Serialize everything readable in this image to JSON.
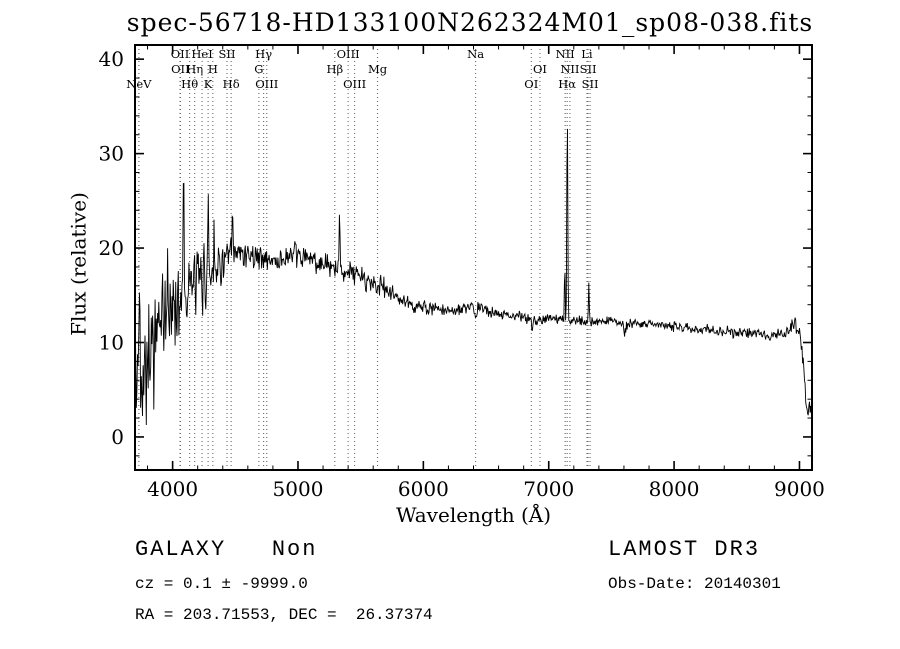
{
  "title": "spec-56718-HD133100N262324M01_sp08-038.fits",
  "chart_data": {
    "type": "line",
    "title": "spec-56718-HD133100N262324M01_sp08-038.fits",
    "xlabel": "Wavelength (Å)",
    "ylabel": "Flux (relative)",
    "xlim": [
      3700,
      9100
    ],
    "ylim": [
      -3.5,
      41.5
    ],
    "x_ticks": [
      4000,
      5000,
      6000,
      7000,
      8000,
      9000
    ],
    "y_ticks": [
      0,
      10,
      20,
      30,
      40
    ],
    "x_minor_step": 200,
    "y_minor_step": 2,
    "grid": false,
    "line_color": "#000000",
    "spectral_line_color": "#aa3939",
    "continuum": [
      [
        3700,
        5
      ],
      [
        3740,
        7
      ],
      [
        3800,
        9
      ],
      [
        3850,
        10
      ],
      [
        3900,
        12
      ],
      [
        3960,
        13
      ],
      [
        4020,
        14
      ],
      [
        4080,
        15
      ],
      [
        4150,
        16
      ],
      [
        4220,
        16.5
      ],
      [
        4300,
        17.5
      ],
      [
        4380,
        18.2
      ],
      [
        4460,
        19
      ],
      [
        4550,
        19.5
      ],
      [
        4650,
        19.2
      ],
      [
        4750,
        18.8
      ],
      [
        4850,
        18.6
      ],
      [
        4950,
        19.2
      ],
      [
        5050,
        19
      ],
      [
        5150,
        18.6
      ],
      [
        5250,
        17.8
      ],
      [
        5350,
        17.8
      ],
      [
        5450,
        17.3
      ],
      [
        5550,
        16.6
      ],
      [
        5650,
        16
      ],
      [
        5750,
        15.2
      ],
      [
        5850,
        14.2
      ],
      [
        5950,
        13.8
      ],
      [
        6050,
        13.6
      ],
      [
        6150,
        13.4
      ],
      [
        6250,
        13.4
      ],
      [
        6350,
        13.6
      ],
      [
        6450,
        13.7
      ],
      [
        6550,
        13.2
      ],
      [
        6650,
        13
      ],
      [
        6750,
        12.8
      ],
      [
        6870,
        12.4
      ],
      [
        7000,
        12.6
      ],
      [
        7100,
        12.4
      ],
      [
        7250,
        12.3
      ],
      [
        7400,
        12.2
      ],
      [
        7550,
        12.3
      ],
      [
        7620,
        11.8
      ],
      [
        7700,
        12.1
      ],
      [
        7850,
        11.9
      ],
      [
        8000,
        11.7
      ],
      [
        8150,
        11.5
      ],
      [
        8300,
        11.3
      ],
      [
        8450,
        11.1
      ],
      [
        8600,
        11
      ],
      [
        8750,
        10.8
      ],
      [
        8900,
        11
      ],
      [
        8960,
        11.8
      ],
      [
        9000,
        10.8
      ],
      [
        9030,
        8
      ],
      [
        9060,
        2.5
      ],
      [
        9100,
        3
      ]
    ],
    "noise_segments": [
      [
        3700,
        3880,
        6.5
      ],
      [
        3880,
        4080,
        4.5
      ],
      [
        4080,
        4300,
        3.5
      ],
      [
        4300,
        4500,
        2.2
      ],
      [
        4500,
        5300,
        1.3
      ],
      [
        5300,
        5700,
        1.2
      ],
      [
        5700,
        6100,
        0.8
      ],
      [
        6100,
        7000,
        0.55
      ],
      [
        7000,
        8200,
        0.5
      ],
      [
        8200,
        8900,
        0.55
      ],
      [
        8900,
        9100,
        0.9
      ]
    ],
    "spikes": [
      [
        3735,
        11,
        5
      ],
      [
        3962,
        6,
        4
      ],
      [
        4088,
        16,
        5
      ],
      [
        4285,
        9,
        4
      ],
      [
        4330,
        5,
        4
      ],
      [
        4478,
        4,
        5
      ],
      [
        5332,
        6.5,
        4
      ],
      [
        6417,
        -1.0,
        9
      ],
      [
        6868,
        -0.9,
        8
      ],
      [
        7128,
        6,
        4
      ],
      [
        7148,
        24,
        5
      ],
      [
        7320,
        4.2,
        4
      ],
      [
        7605,
        -1.0,
        9
      ]
    ],
    "spectral_lines": [
      {
        "label": "NeV",
        "wavelength": 3731,
        "row": 3
      },
      {
        "label": "OII",
        "wavelength": 4059,
        "row": 1
      },
      {
        "label": "OII",
        "wavelength": 4062,
        "row": 2
      },
      {
        "label": "Hθ",
        "wavelength": 4136,
        "row": 3
      },
      {
        "label": "Hη",
        "wavelength": 4176,
        "row": 2
      },
      {
        "label": "HeI",
        "wavelength": 4235,
        "row": 1
      },
      {
        "label": "K",
        "wavelength": 4283,
        "row": 3
      },
      {
        "label": "H",
        "wavelength": 4321,
        "row": 2
      },
      {
        "label": "SII",
        "wavelength": 4434,
        "row": 1
      },
      {
        "label": "Hδ",
        "wavelength": 4467,
        "row": 3
      },
      {
        "label": "G",
        "wavelength": 4688,
        "row": 2
      },
      {
        "label": "Hγ",
        "wavelength": 4726,
        "row": 1
      },
      {
        "label": "OIII",
        "wavelength": 4751,
        "row": 3
      },
      {
        "label": "Hβ",
        "wavelength": 5294,
        "row": 2
      },
      {
        "label": "OIII",
        "wavelength": 5400,
        "row": 1
      },
      {
        "label": "OIII",
        "wavelength": 5452,
        "row": 3
      },
      {
        "label": "Mg",
        "wavelength": 5635,
        "row": 2
      },
      {
        "label": "Na",
        "wavelength": 6417,
        "row": 1
      },
      {
        "label": "OI",
        "wavelength": 6861,
        "row": 3
      },
      {
        "label": "OI",
        "wavelength": 6930,
        "row": 2
      },
      {
        "label": "NII",
        "wavelength": 7131,
        "row": 1
      },
      {
        "label": "Hα",
        "wavelength": 7147,
        "row": 3
      },
      {
        "label": "NII",
        "wavelength": 7169,
        "row": 2
      },
      {
        "label": "Li",
        "wavelength": 7305,
        "row": 1
      },
      {
        "label": "SII",
        "wavelength": 7314,
        "row": 2
      },
      {
        "label": "SII",
        "wavelength": 7330,
        "row": 3
      }
    ]
  },
  "annotations": {
    "class_label": "GALAXY   Non",
    "survey": "LAMOST DR3",
    "cz": "cz = 0.1 ± -9999.0",
    "obs_date": "Obs-Date: 20140301",
    "radec": "RA = 203.71553, DEC =  26.37374"
  }
}
